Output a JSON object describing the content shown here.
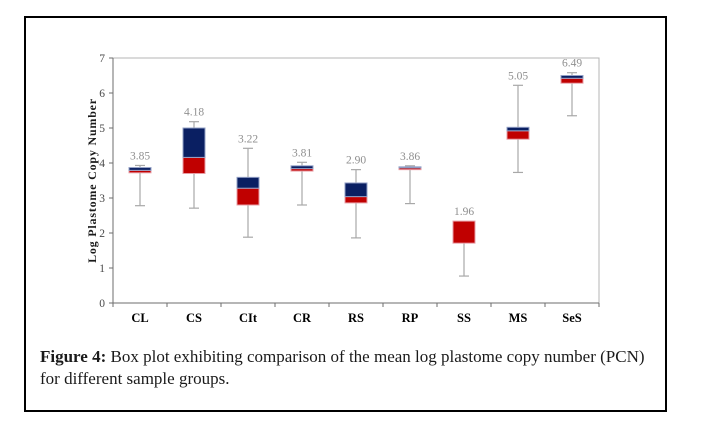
{
  "figure": {
    "caption_prefix": "Figure 4:",
    "caption_text": " Box plot exhibiting comparison of the mean log plastome copy number (PCN) for different sample groups."
  },
  "colors": {
    "upper_box": "#0a1f62",
    "upper_box_outline": "#93a0c6",
    "lower_box": "#c00000",
    "lower_box_outline": "#e79ca4",
    "whisker": "#a8a8a8",
    "mean_label": "#8f8f8f",
    "plot_border": "#b4b4b4",
    "axis": "#6e6e6e",
    "tick_label": "#4a4a4a",
    "x_label": "#000000",
    "figure_border": "#000000"
  },
  "chart_data": {
    "type": "boxplot",
    "title": "",
    "xlabel": "",
    "ylabel": "Log Plastome Copy Number",
    "ylim": [
      0,
      7
    ],
    "yticks": [
      "0",
      "1",
      "2",
      "3",
      "4",
      "5",
      "6",
      "7"
    ],
    "grid": false,
    "legend": false,
    "categories": [
      "CL",
      "CS",
      "CIt",
      "CR",
      "RS",
      "RP",
      "SS",
      "MS",
      "SeS"
    ],
    "boxes": [
      {
        "category": "CL",
        "mean_label": "3.85",
        "upper_box_top": 3.87,
        "mean": 3.79,
        "lower_box_bottom": 3.72,
        "whisker_high": 3.93,
        "whisker_low": 2.78
      },
      {
        "category": "CS",
        "mean_label": "4.18",
        "upper_box_top": 5.0,
        "mean": 4.16,
        "lower_box_bottom": 3.7,
        "whisker_high": 5.18,
        "whisker_low": 2.71
      },
      {
        "category": "CIt",
        "mean_label": "3.22",
        "upper_box_top": 3.59,
        "mean": 3.28,
        "lower_box_bottom": 2.8,
        "whisker_high": 4.42,
        "whisker_low": 1.88
      },
      {
        "category": "CR",
        "mean_label": "3.81",
        "upper_box_top": 3.92,
        "mean": 3.84,
        "lower_box_bottom": 3.77,
        "whisker_high": 4.02,
        "whisker_low": 2.8
      },
      {
        "category": "RS",
        "mean_label": "2.90",
        "upper_box_top": 3.43,
        "mean": 3.04,
        "lower_box_bottom": 2.86,
        "whisker_high": 3.81,
        "whisker_low": 1.86
      },
      {
        "category": "RP",
        "mean_label": "3.86",
        "upper_box_top": 3.89,
        "mean": 3.86,
        "lower_box_bottom": 3.81,
        "whisker_high": 3.92,
        "whisker_low": 2.84
      },
      {
        "category": "SS",
        "mean_label": "1.96",
        "upper_box_top": 2.34,
        "mean": 2.34,
        "lower_box_bottom": 1.71,
        "whisker_high": null,
        "whisker_low": 0.77
      },
      {
        "category": "MS",
        "mean_label": "5.05",
        "upper_box_top": 5.02,
        "mean": 4.92,
        "lower_box_bottom": 4.68,
        "whisker_high": 6.22,
        "whisker_low": 3.73
      },
      {
        "category": "SeS",
        "mean_label": "6.49",
        "upper_box_top": 6.5,
        "mean": 6.42,
        "lower_box_bottom": 6.28,
        "whisker_high": 6.58,
        "whisker_low": 5.35
      }
    ]
  }
}
